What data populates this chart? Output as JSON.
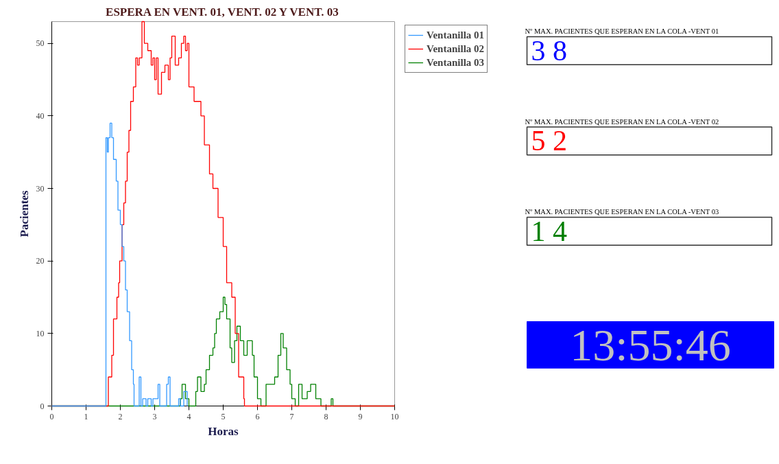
{
  "chart_data": [
    {
      "type": "step",
      "title": "ESPERA EN VENT. 01, VENT. 02 Y VENT. 03",
      "xlabel": "Horas",
      "ylabel": "Pacientes",
      "xlim": [
        0,
        10
      ],
      "ylim": [
        0,
        53
      ],
      "xticks": [
        0,
        1,
        2,
        3,
        4,
        5,
        6,
        7,
        8,
        9,
        10
      ],
      "yticks": [
        0,
        10,
        20,
        30,
        40,
        50
      ],
      "grid": false,
      "legend": "top right",
      "marker": "none",
      "line_style": "solid",
      "series": [
        {
          "name": "Ventanilla 01",
          "color": "#3399ff",
          "x": [
            0,
            1.58,
            1.62,
            1.65,
            1.7,
            1.75,
            1.8,
            1.88,
            1.93,
            2.0,
            2.05,
            2.1,
            2.15,
            2.2,
            2.27,
            2.33,
            2.38,
            2.4,
            2.55,
            2.6,
            2.65,
            2.75,
            2.8,
            2.9,
            2.95,
            3.1,
            3.15,
            3.35,
            3.4,
            3.45,
            3.7,
            3.75,
            3.85,
            3.95
          ],
          "values": [
            0,
            37,
            35,
            37,
            39,
            37,
            34,
            31,
            27,
            25,
            22,
            20,
            16,
            13,
            9,
            5,
            3,
            0,
            4,
            0,
            1,
            0,
            1,
            0,
            1,
            3,
            0,
            3,
            4,
            0,
            1,
            0,
            2,
            0
          ]
        },
        {
          "name": "Ventanilla 02",
          "color": "#ff0000",
          "x": [
            0,
            1.6,
            1.65,
            1.75,
            1.8,
            1.9,
            1.95,
            1.98,
            2.05,
            2.1,
            2.15,
            2.2,
            2.25,
            2.3,
            2.38,
            2.45,
            2.5,
            2.55,
            2.63,
            2.7,
            2.8,
            2.9,
            2.95,
            3.0,
            3.05,
            3.1,
            3.2,
            3.3,
            3.4,
            3.45,
            3.5,
            3.6,
            3.7,
            3.78,
            3.85,
            3.9,
            3.95,
            4.0,
            4.15,
            4.35,
            4.45,
            4.6,
            4.7,
            4.85,
            5.0,
            5.1,
            5.25,
            5.35,
            5.45,
            5.6,
            5.62,
            10
          ],
          "values": [
            0,
            0,
            4,
            7,
            12,
            15,
            17,
            20,
            25,
            28,
            31,
            35,
            38,
            42,
            44,
            48,
            47,
            48,
            53,
            50,
            49,
            47,
            48,
            45,
            48,
            43,
            46,
            47,
            45,
            48,
            51,
            47,
            48,
            50,
            51,
            49,
            50,
            44,
            42,
            40,
            36,
            32,
            30,
            26,
            22,
            17,
            15,
            10,
            4,
            1,
            0,
            0
          ]
        },
        {
          "name": "Ventanilla 03",
          "color": "#008000",
          "x": [
            0,
            3.75,
            3.8,
            3.9,
            4.0,
            4.2,
            4.25,
            4.35,
            4.45,
            4.5,
            4.6,
            4.7,
            4.75,
            4.8,
            4.9,
            5.0,
            5.05,
            5.1,
            5.2,
            5.25,
            5.33,
            5.4,
            5.5,
            5.6,
            5.7,
            5.85,
            5.9,
            6.0,
            6.1,
            6.25,
            6.5,
            6.6,
            6.68,
            6.75,
            6.85,
            6.95,
            7.0,
            7.1,
            7.2,
            7.3,
            7.45,
            7.55,
            7.7,
            7.85,
            8.15,
            8.2,
            10
          ],
          "values": [
            0,
            1,
            3,
            1,
            0,
            2,
            4,
            2,
            3,
            5,
            7,
            8,
            10,
            12,
            13,
            15,
            14,
            12,
            8,
            6,
            9,
            11,
            9,
            7,
            9,
            7,
            4,
            1,
            0,
            3,
            4,
            7,
            10,
            8,
            5,
            3,
            1,
            0,
            3,
            1,
            2,
            3,
            1,
            0,
            1,
            0,
            0
          ]
        }
      ]
    },
    {
      "type": "other",
      "annotations": [
        "Nº MAX. PACIENTES QUE ESPERAN EN LA COLA -VENT 01",
        "3 8",
        "Nº MAX. PACIENTES QUE ESPERAN EN LA COLA -VENT 02",
        "5 2",
        "Nº MAX. PACIENTES QUE ESPERAN EN LA COLA -VENT 03",
        "1 4",
        "13:55:46"
      ],
      "colors": [
        "#000000",
        "#0000ff",
        "#000000",
        "#ff0000",
        "#000000",
        "#008000",
        "#c0c0c0"
      ]
    }
  ]
}
